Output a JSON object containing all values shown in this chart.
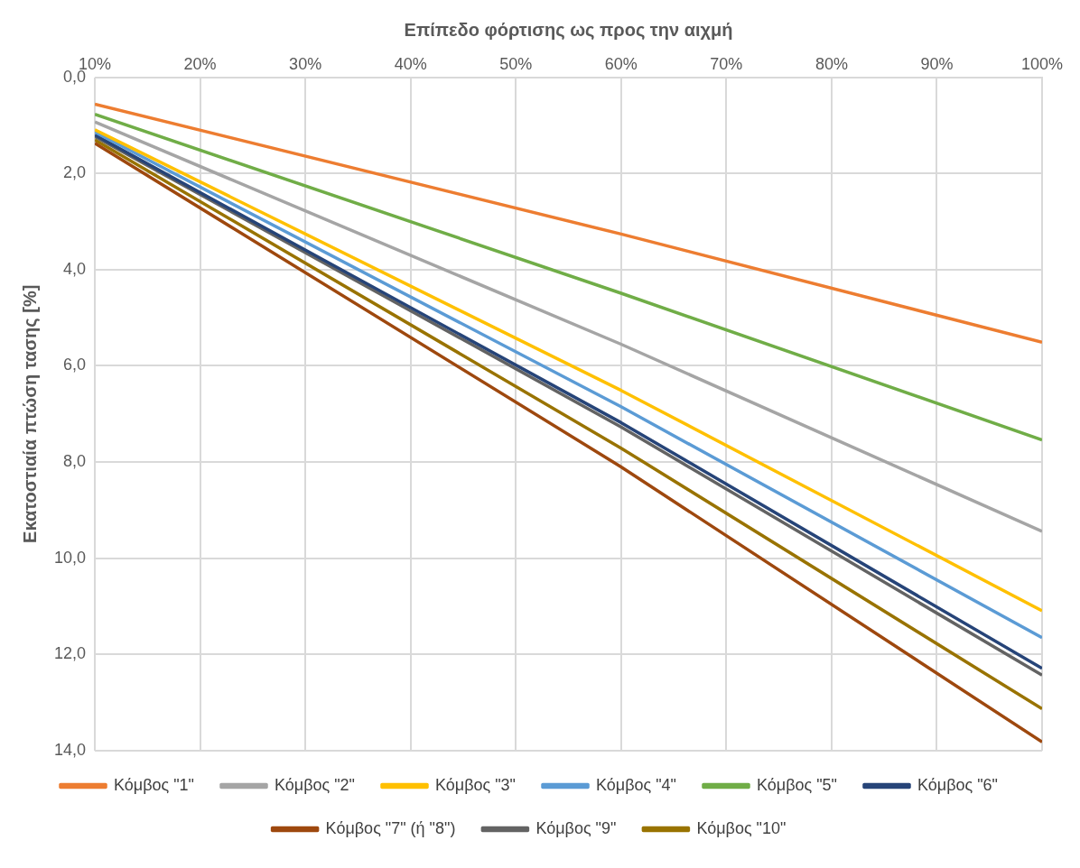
{
  "chart_data": {
    "type": "line",
    "xlabel": "Επίπεδο φόρτισης ως προς την αιχμή",
    "ylabel": "Εκατοστιαία πτώση τασης [%]",
    "x": [
      10,
      60,
      100
    ],
    "xlim": [
      10,
      100
    ],
    "xticks": [
      {
        "value": 10,
        "label": "10%"
      },
      {
        "value": 20,
        "label": "20%"
      },
      {
        "value": 30,
        "label": "30%"
      },
      {
        "value": 40,
        "label": "40%"
      },
      {
        "value": 50,
        "label": "50%"
      },
      {
        "value": 60,
        "label": "60%"
      },
      {
        "value": 70,
        "label": "70%"
      },
      {
        "value": 80,
        "label": "80%"
      },
      {
        "value": 90,
        "label": "90%"
      },
      {
        "value": 100,
        "label": "100%"
      }
    ],
    "ylim": [
      14,
      0
    ],
    "yticks": [
      {
        "value": 0,
        "label": "0,0"
      },
      {
        "value": 2,
        "label": "2,0"
      },
      {
        "value": 4,
        "label": "4,0"
      },
      {
        "value": 6,
        "label": "6,0"
      },
      {
        "value": 8,
        "label": "8,0"
      },
      {
        "value": 10,
        "label": "10,0"
      },
      {
        "value": 12,
        "label": "12,0"
      },
      {
        "value": 14,
        "label": "14,0"
      }
    ],
    "grid": true,
    "legend": "bottom",
    "marker": "none",
    "line_style": "solid",
    "series": [
      {
        "name": "Κόμβος \"1\"",
        "color": "#ed7d31",
        "values": [
          0.56,
          3.26,
          5.51
        ]
      },
      {
        "name": "Κόμβος \"2\"",
        "color": "#a5a5a5",
        "values": [
          0.93,
          5.55,
          9.44
        ]
      },
      {
        "name": "Κόμβος \"3\"",
        "color": "#ffc000",
        "values": [
          1.09,
          6.51,
          11.09
        ]
      },
      {
        "name": "Κόμβος \"4\"",
        "color": "#5b9bd5",
        "values": [
          1.14,
          6.85,
          11.65
        ]
      },
      {
        "name": "Κόμβος \"5\"",
        "color": "#70ad47",
        "values": [
          0.77,
          4.49,
          7.54
        ]
      },
      {
        "name": "Κόμβος \"6\"",
        "color": "#264478",
        "values": [
          1.2,
          7.18,
          12.29
        ]
      },
      {
        "name": "Κόμβος \"7\" (ή \"8\")",
        "color": "#9e480e",
        "values": [
          1.37,
          8.1,
          13.82
        ]
      },
      {
        "name": "Κόμβος \"9\"",
        "color": "#636363",
        "values": [
          1.23,
          7.27,
          12.43
        ]
      },
      {
        "name": "Κόμβος \"10\"",
        "color": "#997300",
        "values": [
          1.3,
          7.71,
          13.13
        ]
      }
    ]
  }
}
